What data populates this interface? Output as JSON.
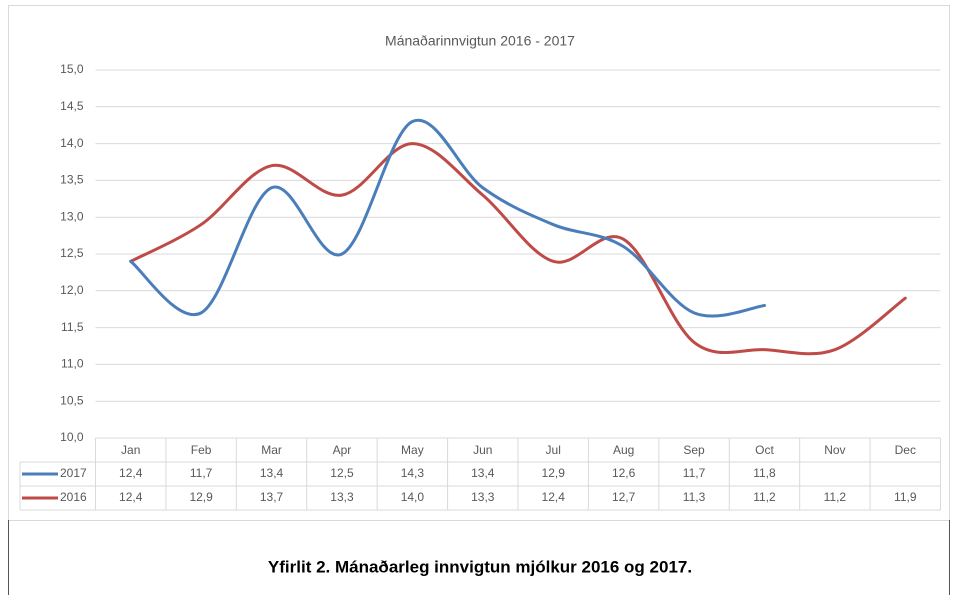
{
  "chart_data": {
    "type": "line",
    "title": "Mánaðarinnvigtun 2016 - 2017",
    "categories": [
      "Jan",
      "Feb",
      "Mar",
      "Apr",
      "May",
      "Jun",
      "Jul",
      "Aug",
      "Sep",
      "Oct",
      "Nov",
      "Dec"
    ],
    "series": [
      {
        "name": "2017",
        "color": "#4a7ebb",
        "values": [
          12.4,
          11.7,
          13.4,
          12.5,
          14.3,
          13.4,
          12.9,
          12.6,
          11.7,
          11.8,
          null,
          null
        ],
        "value_labels": [
          "12,4",
          "11,7",
          "13,4",
          "12,5",
          "14,3",
          "13,4",
          "12,9",
          "12,6",
          "11,7",
          "11,8",
          null,
          null
        ]
      },
      {
        "name": "2016",
        "color": "#be4b48",
        "values": [
          12.4,
          12.9,
          13.7,
          13.3,
          14.0,
          13.3,
          12.4,
          12.7,
          11.3,
          11.2,
          11.2,
          11.9
        ],
        "value_labels": [
          "12,4",
          "12,9",
          "13,7",
          "13,3",
          "14,0",
          "13,3",
          "12,4",
          "12,7",
          "11,3",
          "11,2",
          "11,2",
          "11,9"
        ]
      }
    ],
    "ylim": [
      10,
      15
    ],
    "yticks": [
      {
        "value": 10,
        "label": "10,0"
      },
      {
        "value": 10.5,
        "label": "10,5"
      },
      {
        "value": 11,
        "label": "11,0"
      },
      {
        "value": 11.5,
        "label": "11,5"
      },
      {
        "value": 12,
        "label": "12,0"
      },
      {
        "value": 12.5,
        "label": "12,5"
      },
      {
        "value": 13,
        "label": "13,0"
      },
      {
        "value": 13.5,
        "label": "13,5"
      },
      {
        "value": 14,
        "label": "14,0"
      },
      {
        "value": 14.5,
        "label": "14,5"
      },
      {
        "value": 15,
        "label": "15,0"
      }
    ],
    "grid": true,
    "smooth": true,
    "caption": "Yfirlit 2. Mánaðarleg innvigtun mjólkur 2016 og 2017."
  }
}
